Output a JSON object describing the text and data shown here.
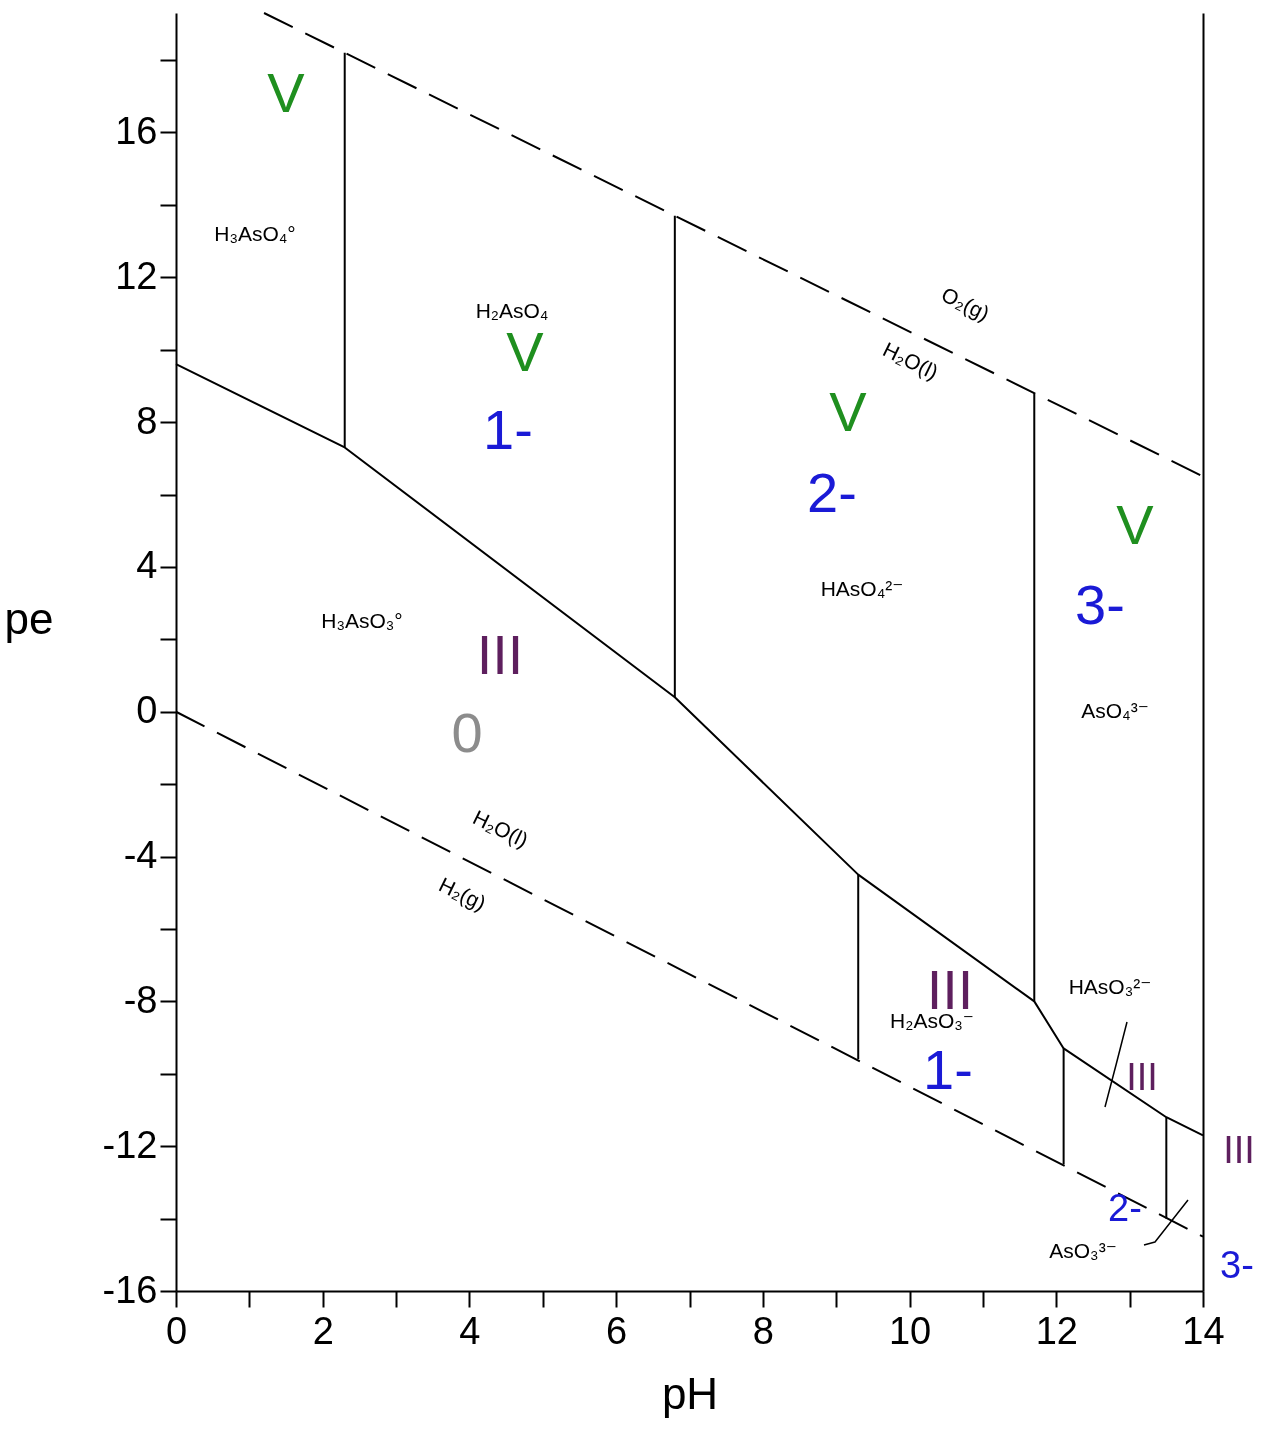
{
  "chart_data": {
    "type": "line",
    "xlabel": "pH",
    "ylabel": "pe",
    "xlim": [
      0,
      14
    ],
    "ylim": [
      -16,
      19.3
    ],
    "xticks": [
      0,
      {
        "value": 1,
        "label": null
      },
      2,
      {
        "value": 3,
        "label": null
      },
      4,
      {
        "value": 5,
        "label": null
      },
      6,
      {
        "value": 7,
        "label": null
      },
      8,
      {
        "value": 9,
        "label": null
      },
      10,
      {
        "value": 11,
        "label": null
      },
      12,
      {
        "value": 13,
        "label": null
      },
      14
    ],
    "yticks": [
      -16,
      {
        "value": -14,
        "label": null
      },
      -12,
      {
        "value": -10,
        "label": null
      },
      -8,
      {
        "value": -6,
        "label": null
      },
      -4,
      {
        "value": -2,
        "label": null
      },
      0,
      {
        "value": 2,
        "label": null
      },
      4,
      {
        "value": 6,
        "label": null
      },
      8,
      {
        "value": 10,
        "label": null
      },
      12,
      {
        "value": 14,
        "label": null
      },
      16,
      {
        "value": 18,
        "label": null
      }
    ],
    "series": [
      {
        "line_style": "dashed",
        "color": "#000000",
        "x": [
          1.2,
          14
        ],
        "values": [
          19.3,
          6.5
        ]
      },
      {
        "line_style": "dashed",
        "color": "#000000",
        "x": [
          0,
          14
        ],
        "values": [
          0,
          -14.5
        ]
      },
      {
        "color": "#000000",
        "x": [
          0,
          2.3,
          6.8,
          9.3,
          11.7,
          12.1,
          13.5,
          14
        ],
        "values": [
          9.6,
          7.3,
          0.4,
          -4.5,
          -8.0,
          -9.3,
          -11.2,
          -11.7
        ]
      },
      {
        "color": "#000000",
        "x": [
          2.3,
          2.3
        ],
        "values": [
          7.3,
          18.2
        ]
      },
      {
        "color": "#000000",
        "x": [
          6.8,
          6.8
        ],
        "values": [
          0.4,
          13.7
        ]
      },
      {
        "color": "#000000",
        "x": [
          11.7,
          11.7
        ],
        "values": [
          -8.0,
          8.8
        ]
      },
      {
        "color": "#000000",
        "x": [
          9.3,
          9.3
        ],
        "values": [
          -4.5,
          -9.6
        ]
      },
      {
        "color": "#000000",
        "x": [
          12.1,
          12.1
        ],
        "values": [
          -9.3,
          -12.5
        ]
      },
      {
        "color": "#000000",
        "x": [
          13.5,
          13.5
        ],
        "values": [
          -11.2,
          -14.0
        ]
      }
    ],
    "annotations": [
      "V",
      "H₃AsO₄°",
      "H₂AsO₄",
      "V",
      "1-",
      "O₂(g)",
      "H₂O(l)",
      "V",
      "2-",
      "HAsO₄²⁻",
      "V",
      "3-",
      "AsO₄³⁻",
      "H₃AsO₃°",
      "III",
      "0",
      "H₂O(l)",
      "H₂(g)",
      "III",
      "H₂AsO₃⁻",
      "1-",
      "HAsO₃²⁻",
      "III",
      "III",
      "2-",
      "AsO₃³⁻",
      "3-"
    ]
  }
}
